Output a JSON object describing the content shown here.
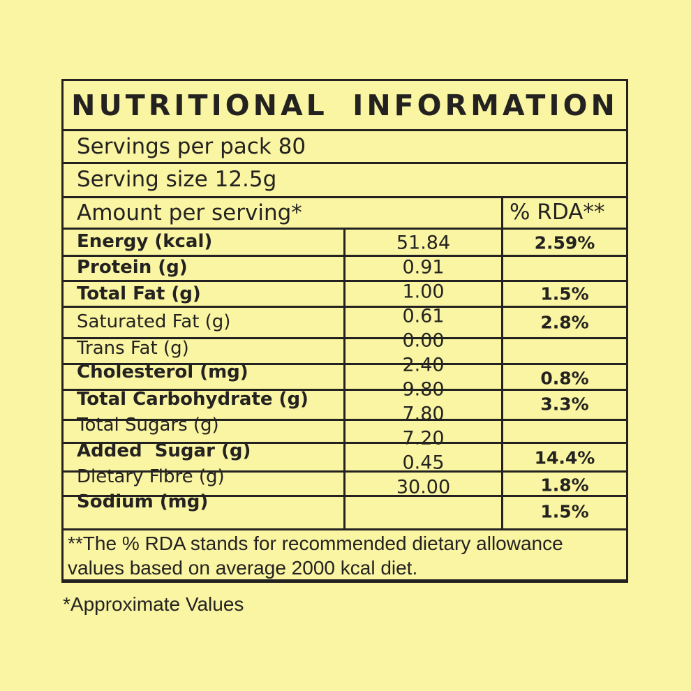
{
  "colors": {
    "background": "#faf5a2",
    "ink": "#232220"
  },
  "table": {
    "title": "NUTRITIONAL INFORMATION",
    "servings_per_pack": "Servings per pack 80",
    "serving_size": "Serving size 12.5g",
    "amount_header": "Amount per serving*",
    "rda_header": "% RDA**",
    "rows": [
      {
        "label": "Energy (kcal)",
        "value": "51.84",
        "rda": "2.59%"
      },
      {
        "label": "Protein (g)",
        "value": "0.91",
        "rda": ""
      },
      {
        "label": "Total Fat (g)",
        "value": "1.00",
        "rda": "1.5%"
      },
      {
        "label": "Saturated Fat (g)",
        "value": "0.61",
        "rda": "2.8%"
      },
      {
        "label": "Trans Fat (g)",
        "value": "0.00",
        "rda": ""
      },
      {
        "label": "Cholesterol (mg)",
        "value": "2.40",
        "rda": "0.8%"
      },
      {
        "label": "Total Carbohydrate (g)",
        "value": "9.80",
        "rda": "3.3%"
      },
      {
        "label": "Total Sugars (g)",
        "value": "7.80",
        "rda": ""
      },
      {
        "label": "Added  Sugar (g)",
        "value": "7.20",
        "rda": "14.4%"
      },
      {
        "label": "Dietary Fibre (g)",
        "value": "0.45",
        "rda": "1.8%"
      },
      {
        "label": "Sodium (mg)",
        "value": "30.00",
        "rda": "1.5%"
      }
    ],
    "footnote_line1": "**The % RDA stands for recommended dietary allowance",
    "footnote_line2": "values based on average 2000 kcal diet."
  },
  "caption": "*Approximate Values"
}
